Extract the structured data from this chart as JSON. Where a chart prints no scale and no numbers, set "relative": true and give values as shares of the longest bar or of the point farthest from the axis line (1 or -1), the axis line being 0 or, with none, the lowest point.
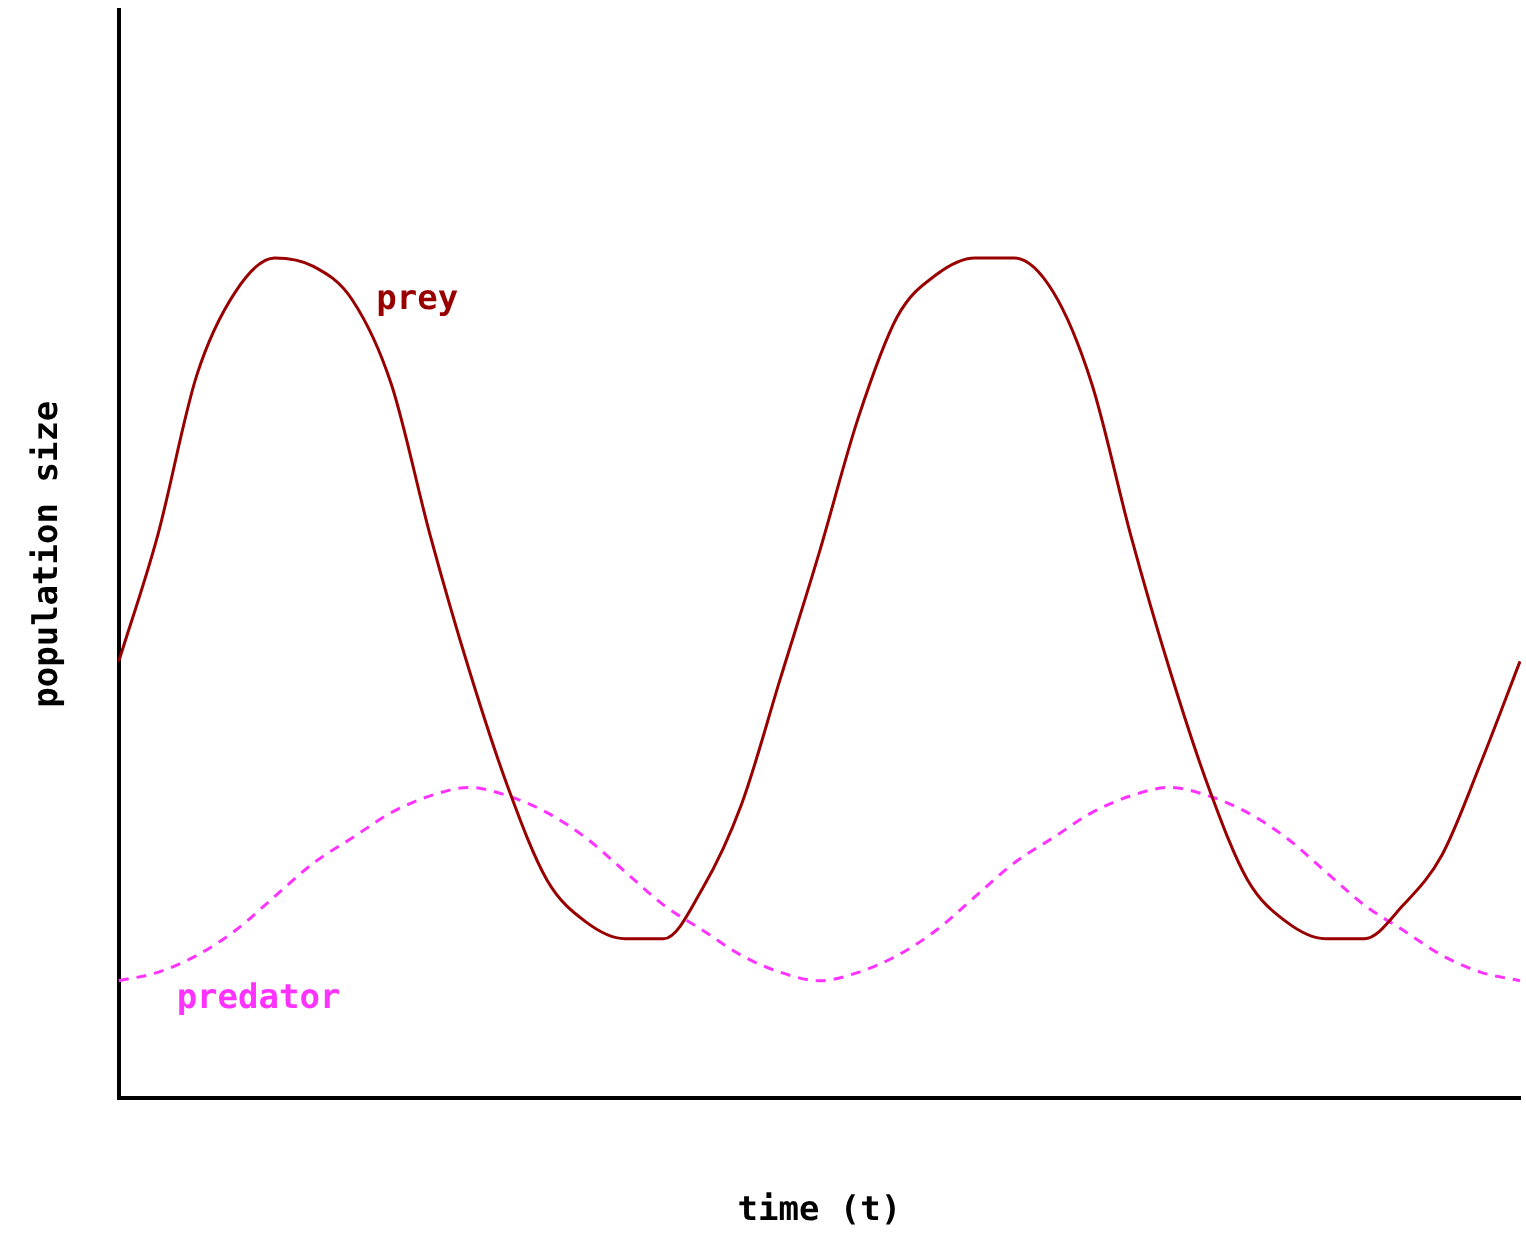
{
  "chart_data": {
    "type": "line",
    "relative": true,
    "xlabel": "time (t)",
    "ylabel": "population size",
    "categories": [
      null,
      null,
      null,
      null,
      null,
      null,
      null,
      null,
      null,
      null,
      null,
      null,
      null,
      null,
      null,
      null,
      null,
      null,
      null,
      null,
      null,
      null,
      null,
      null,
      null,
      null,
      null,
      null,
      null,
      null,
      null,
      null,
      null,
      null,
      null,
      null,
      null
    ],
    "marker": "none",
    "grid": false,
    "legend": false,
    "series": [
      {
        "name": "prey",
        "color": "#990000",
        "line_style": "solid",
        "values": [
          0.52,
          0.67,
          0.86,
          0.96,
          1.0,
          0.99,
          0.95,
          0.85,
          0.67,
          0.51,
          0.37,
          0.26,
          0.21,
          0.19,
          0.19,
          0.25,
          0.35,
          0.5,
          0.65,
          0.81,
          0.93,
          0.98,
          1.0,
          1.0,
          0.96,
          0.85,
          0.67,
          0.51,
          0.37,
          0.26,
          0.21,
          0.19,
          0.19,
          0.23,
          0.29,
          0.4,
          0.52
        ]
      },
      {
        "name": "predator",
        "color": "#ff33ff",
        "line_style": "dashed",
        "values": [
          0.14,
          0.15,
          0.17,
          0.2,
          0.24,
          0.28,
          0.31,
          0.34,
          0.36,
          0.37,
          0.36,
          0.34,
          0.31,
          0.27,
          0.23,
          0.2,
          0.17,
          0.15,
          0.14,
          0.15,
          0.17,
          0.2,
          0.24,
          0.28,
          0.31,
          0.34,
          0.36,
          0.37,
          0.36,
          0.34,
          0.31,
          0.27,
          0.23,
          0.2,
          0.17,
          0.15,
          0.14
        ]
      }
    ]
  }
}
